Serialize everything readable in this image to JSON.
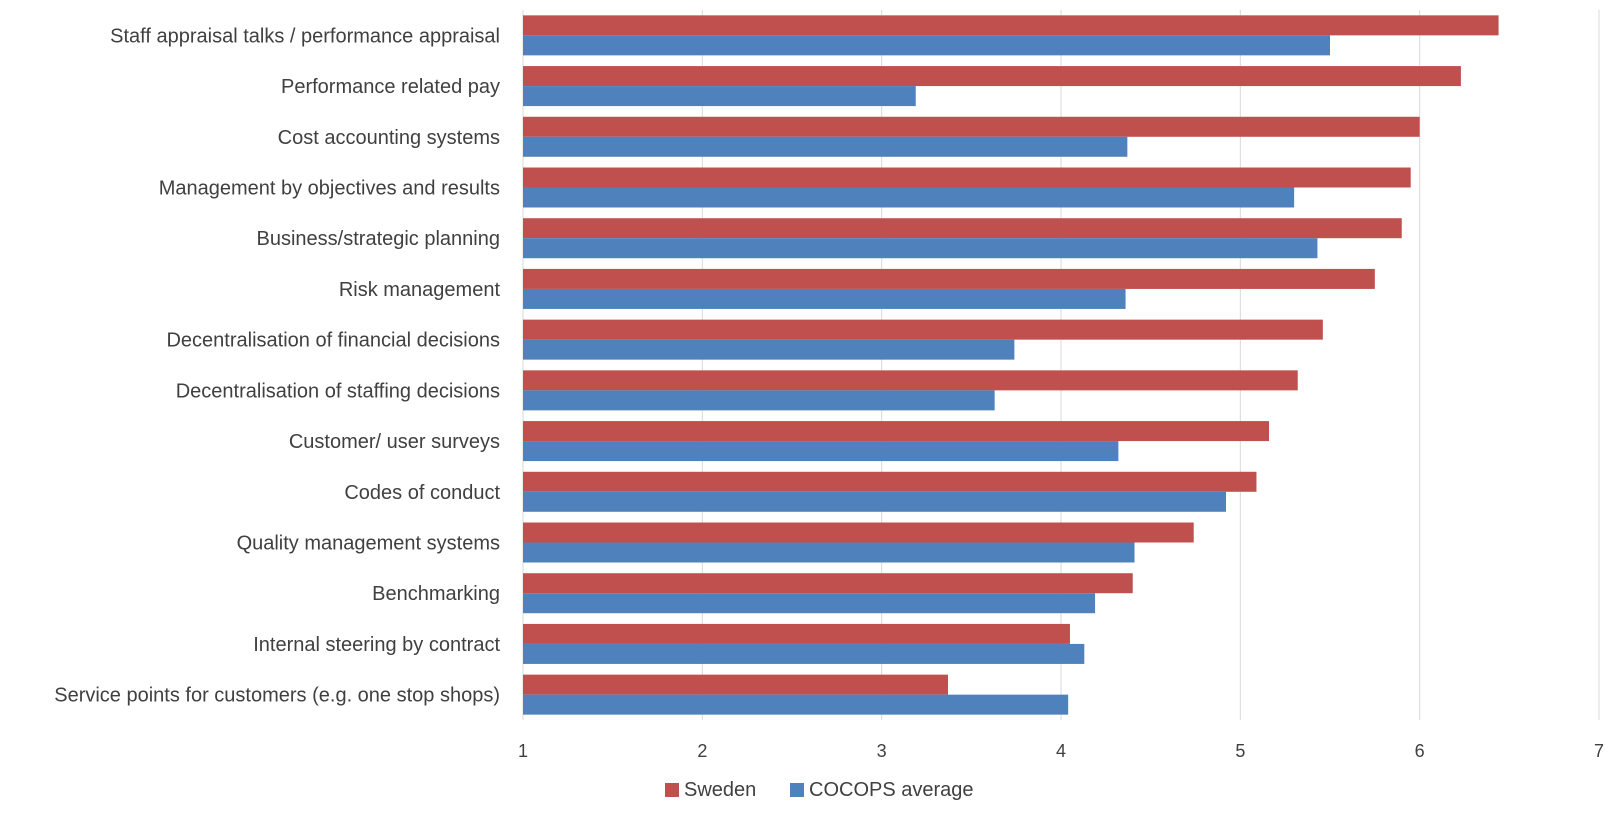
{
  "chart_data": {
    "type": "bar",
    "orientation": "horizontal",
    "categories": [
      "Staff appraisal talks / performance appraisal",
      "Performance related pay",
      "Cost accounting systems",
      "Management by objectives and results",
      "Business/strategic planning",
      "Risk management",
      "Decentralisation of financial decisions",
      "Decentralisation of staffing decisions",
      "Customer/ user surveys",
      "Codes of conduct",
      "Quality management systems",
      "Benchmarking",
      "Internal steering by contract",
      "Service points for customers (e.g. one stop shops)"
    ],
    "series": [
      {
        "name": "Sweden",
        "color": "#c0504d",
        "values": [
          6.44,
          6.23,
          6.0,
          5.95,
          5.9,
          5.75,
          5.46,
          5.32,
          5.16,
          5.09,
          4.74,
          4.4,
          4.05,
          3.37
        ]
      },
      {
        "name": "COCOPS average",
        "color": "#4f81bd",
        "values": [
          5.5,
          3.19,
          4.37,
          5.3,
          5.43,
          4.36,
          3.74,
          3.63,
          4.32,
          4.92,
          4.41,
          4.19,
          4.13,
          4.04
        ]
      }
    ],
    "xlim": [
      1,
      7
    ],
    "xticks": [
      "1",
      "2",
      "3",
      "4",
      "5",
      "6",
      "7"
    ],
    "grid": "vertical",
    "legend_position": "bottom"
  }
}
